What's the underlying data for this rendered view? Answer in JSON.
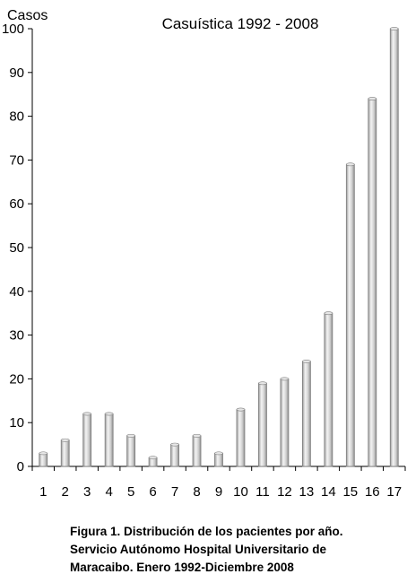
{
  "chart_data": {
    "type": "bar",
    "title": "Casuística 1992 - 2008",
    "ylabel": "Casos",
    "xlabel": "",
    "categories": [
      "1",
      "2",
      "3",
      "4",
      "5",
      "6",
      "7",
      "8",
      "9",
      "10",
      "11",
      "12",
      "13",
      "14",
      "15",
      "16",
      "17"
    ],
    "values": [
      3,
      6,
      12,
      12,
      7,
      2,
      5,
      7,
      3,
      13,
      19,
      20,
      24,
      35,
      69,
      84,
      100
    ],
    "ylim": [
      0,
      100
    ],
    "yticks": [
      0,
      10,
      20,
      30,
      40,
      50,
      60,
      70,
      80,
      90,
      100
    ],
    "grid": false,
    "legend": "none",
    "bar_color": "#d9d9d9"
  },
  "caption": {
    "line1": "Figura 1. Distribución de los pacientes por año.",
    "line2": "Servicio Autónomo Hospital Universitario de",
    "line3": "Maracaibo. Enero 1992-Diciembre 2008"
  }
}
